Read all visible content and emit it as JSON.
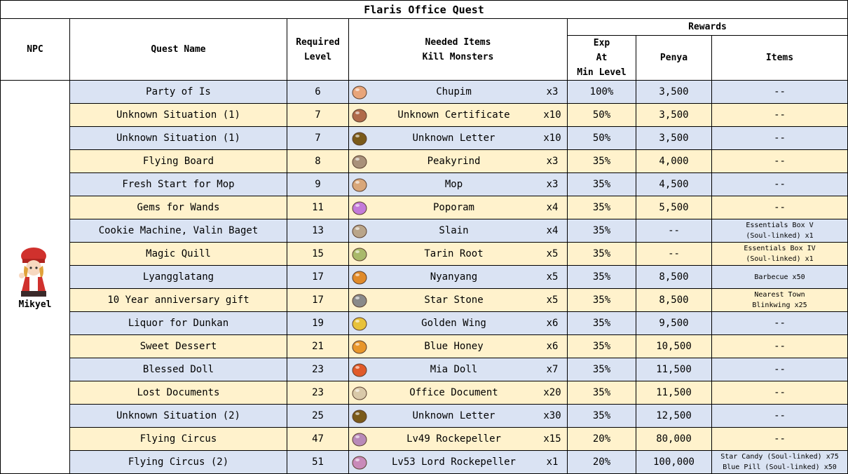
{
  "title": "Flaris Office Quest",
  "headers": {
    "npc": "NPC",
    "quest_name": "Quest Name",
    "required_level_1": "Required",
    "required_level_2": "Level",
    "needed_items_1": "Needed Items",
    "needed_items_2": "Kill Monsters",
    "rewards": "Rewards",
    "exp_1": "Exp",
    "exp_2": "At",
    "exp_3": "Min Level",
    "penya": "Penya",
    "items": "Items"
  },
  "npc": {
    "name": "Mikyel",
    "icon": "npc-mikyel-portrait"
  },
  "rows": [
    {
      "quest": "Party of Is",
      "level": "6",
      "item": "Chupim",
      "icon": "chupim-icon",
      "iconColor": "#e8a57a",
      "qty": "x3",
      "exp": "100%",
      "penya": "3,500",
      "rewardItems": [
        "--"
      ],
      "band": "blue"
    },
    {
      "quest": "Unknown Situation (1)",
      "level": "7",
      "item": "Unknown Certificate",
      "icon": "certificate-icon",
      "iconColor": "#b06a4a",
      "qty": "x10",
      "exp": "50%",
      "penya": "3,500",
      "rewardItems": [
        "--"
      ],
      "band": "yellow"
    },
    {
      "quest": "Unknown Situation (1)",
      "level": "7",
      "item": "Unknown Letter",
      "icon": "letter-icon",
      "iconColor": "#7a5a1a",
      "qty": "x10",
      "exp": "50%",
      "penya": "3,500",
      "rewardItems": [
        "--"
      ],
      "band": "blue"
    },
    {
      "quest": "Flying Board",
      "level": "8",
      "item": "Peakyrind",
      "icon": "peakyrind-icon",
      "iconColor": "#a9917a",
      "qty": "x3",
      "exp": "35%",
      "penya": "4,000",
      "rewardItems": [
        "--"
      ],
      "band": "yellow"
    },
    {
      "quest": "Fresh Start for Mop",
      "level": "9",
      "item": "Mop",
      "icon": "mop-icon",
      "iconColor": "#d9a77a",
      "qty": "x3",
      "exp": "35%",
      "penya": "4,500",
      "rewardItems": [
        "--"
      ],
      "band": "blue"
    },
    {
      "quest": "Gems for Wands",
      "level": "11",
      "item": "Poporam",
      "icon": "poporam-icon",
      "iconColor": "#c37ad9",
      "qty": "x4",
      "exp": "35%",
      "penya": "5,500",
      "rewardItems": [
        "--"
      ],
      "band": "yellow"
    },
    {
      "quest": "Cookie Machine, Valin Baget",
      "level": "13",
      "item": "Slain",
      "icon": "slain-icon",
      "iconColor": "#b9a58a",
      "qty": "x4",
      "exp": "35%",
      "penya": "--",
      "rewardItems": [
        "Essentials Box V",
        "(Soul-linked) x1"
      ],
      "band": "blue"
    },
    {
      "quest": "Magic Quill",
      "level": "15",
      "item": "Tarin Root",
      "icon": "tarin-root-icon",
      "iconColor": "#a9b96a",
      "qty": "x5",
      "exp": "35%",
      "penya": "--",
      "rewardItems": [
        "Essentials Box IV",
        "(Soul-linked) x1"
      ],
      "band": "yellow"
    },
    {
      "quest": "Lyangglatang",
      "level": "17",
      "item": "Nyanyang",
      "icon": "nyanyang-icon",
      "iconColor": "#e08a2a",
      "qty": "x5",
      "exp": "35%",
      "penya": "8,500",
      "rewardItems": [
        "Barbecue x50"
      ],
      "band": "blue"
    },
    {
      "quest": "10 Year anniversary gift",
      "level": "17",
      "item": "Star Stone",
      "icon": "star-stone-icon",
      "iconColor": "#8a8a8a",
      "qty": "x5",
      "exp": "35%",
      "penya": "8,500",
      "rewardItems": [
        "Nearest Town",
        "Blinkwing x25"
      ],
      "band": "yellow"
    },
    {
      "quest": "Liquor for Dunkan",
      "level": "19",
      "item": "Golden Wing",
      "icon": "golden-wing-icon",
      "iconColor": "#e8c23a",
      "qty": "x6",
      "exp": "35%",
      "penya": "9,500",
      "rewardItems": [
        "--"
      ],
      "band": "blue"
    },
    {
      "quest": "Sweet Dessert",
      "level": "21",
      "item": "Blue Honey",
      "icon": "blue-honey-icon",
      "iconColor": "#e8962a",
      "qty": "x6",
      "exp": "35%",
      "penya": "10,500",
      "rewardItems": [
        "--"
      ],
      "band": "yellow"
    },
    {
      "quest": "Blessed Doll",
      "level": "23",
      "item": "Mia Doll",
      "icon": "mia-doll-icon",
      "iconColor": "#e05a2a",
      "qty": "x7",
      "exp": "35%",
      "penya": "11,500",
      "rewardItems": [
        "--"
      ],
      "band": "blue"
    },
    {
      "quest": "Lost Documents",
      "level": "23",
      "item": "Office Document",
      "icon": "document-icon",
      "iconColor": "#d9c9a9",
      "qty": "x20",
      "exp": "35%",
      "penya": "11,500",
      "rewardItems": [
        "--"
      ],
      "band": "yellow"
    },
    {
      "quest": "Unknown Situation (2)",
      "level": "25",
      "item": "Unknown Letter",
      "icon": "letter-icon",
      "iconColor": "#7a5a1a",
      "qty": "x30",
      "exp": "35%",
      "penya": "12,500",
      "rewardItems": [
        "--"
      ],
      "band": "blue"
    },
    {
      "quest": "Flying Circus",
      "level": "47",
      "item": "Lv49 Rockepeller",
      "icon": "rockepeller-icon",
      "iconColor": "#b98ab9",
      "qty": "x15",
      "exp": "20%",
      "penya": "80,000",
      "rewardItems": [
        "--"
      ],
      "band": "yellow"
    },
    {
      "quest": "Flying Circus (2)",
      "level": "51",
      "item": "Lv53 Lord Rockepeller",
      "icon": "lord-rockepeller-icon",
      "iconColor": "#c98ab9",
      "qty": "x1",
      "exp": "20%",
      "penya": "100,000",
      "rewardItems": [
        "Star Candy (Soul-linked) x75",
        "Blue Pill (Soul-linked) x50"
      ],
      "band": "blue"
    }
  ]
}
